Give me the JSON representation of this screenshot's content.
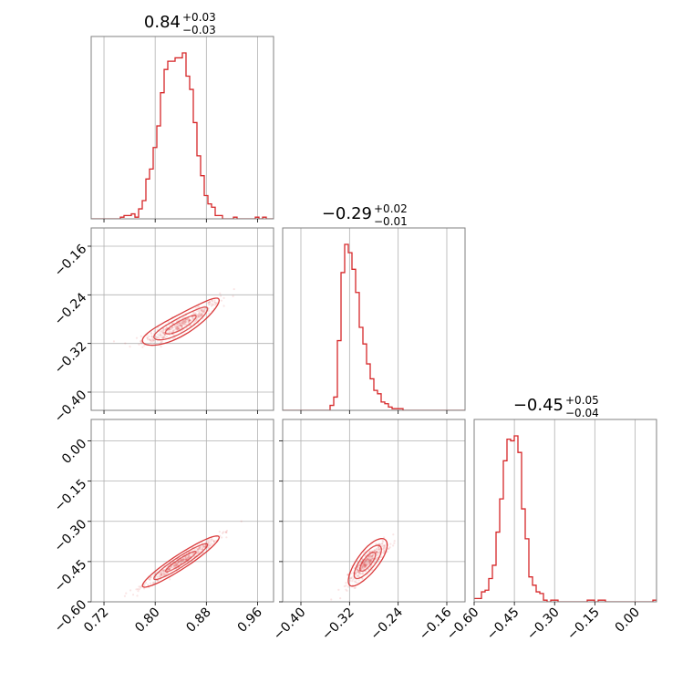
{
  "chart_data": {
    "type": "corner",
    "color": "#d62728",
    "grid": true,
    "parameters": [
      {
        "median_label": "0.84",
        "plus": "+0.03",
        "minus": "−0.03",
        "range": [
          0.7,
          0.985
        ],
        "ticks": [
          0.72,
          0.8,
          0.88,
          0.96
        ],
        "tick_labels": [
          "0.72",
          "0.80",
          "0.88",
          "0.96"
        ]
      },
      {
        "median_label": "−0.29",
        "plus": "+0.02",
        "minus": "−0.01",
        "range": [
          -0.43,
          -0.13
        ],
        "ticks": [
          -0.4,
          -0.32,
          -0.24,
          -0.16
        ],
        "tick_labels": [
          "−0.40",
          "−0.32",
          "−0.24",
          "−0.16"
        ]
      },
      {
        "median_label": "−0.45",
        "plus": "+0.05",
        "minus": "−0.04",
        "range": [
          -0.6,
          0.08
        ],
        "ticks": [
          -0.6,
          -0.45,
          -0.3,
          -0.15,
          0.0
        ],
        "tick_labels": [
          "−0.60",
          "−0.45",
          "−0.30",
          "−0.15",
          "0.00"
        ]
      }
    ],
    "histograms": [
      {
        "bin_start": 0.7,
        "bin_width": 0.0057,
        "counts": [
          0,
          0,
          0,
          0,
          0,
          0,
          0,
          0,
          0.01,
          0.02,
          0.02,
          0.03,
          0.01,
          0.06,
          0.11,
          0.24,
          0.3,
          0.43,
          0.56,
          0.76,
          0.9,
          0.95,
          0.95,
          0.97,
          0.97,
          1.0,
          0.86,
          0.78,
          0.58,
          0.38,
          0.26,
          0.14,
          0.09,
          0.07,
          0.02,
          0.02,
          0,
          0,
          0,
          0.01,
          0,
          0,
          0,
          0,
          0,
          0.01,
          0,
          0.01,
          0,
          0,
          0
        ]
      },
      {
        "bin_start": -0.43,
        "bin_width": 0.006,
        "counts": [
          0,
          0,
          0,
          0,
          0,
          0,
          0,
          0,
          0,
          0,
          0,
          0,
          0,
          0.03,
          0.08,
          0.42,
          0.83,
          1.0,
          0.95,
          0.85,
          0.71,
          0.5,
          0.4,
          0.28,
          0.19,
          0.12,
          0.1,
          0.05,
          0.04,
          0.02,
          0.01,
          0.01,
          0.01,
          0,
          0,
          0,
          0,
          0,
          0,
          0,
          0,
          0,
          0,
          0,
          0,
          0,
          0,
          0,
          0,
          0,
          0
        ]
      },
      {
        "bin_start": -0.6,
        "bin_width": 0.0136,
        "counts": [
          0.02,
          0.02,
          0.06,
          0.07,
          0.14,
          0.22,
          0.42,
          0.62,
          0.85,
          0.98,
          0.97,
          1.0,
          0.9,
          0.56,
          0.38,
          0.15,
          0.1,
          0.06,
          0.05,
          0.01,
          0,
          0.01,
          0.01,
          0,
          0,
          0,
          0,
          0,
          0,
          0,
          0,
          0.01,
          0.01,
          0,
          0.01,
          0.01,
          0,
          0,
          0,
          0,
          0,
          0,
          0,
          0,
          0,
          0,
          0,
          0,
          0,
          0.01
        ]
      }
    ],
    "correlations": [
      {
        "row": 1,
        "col": 0,
        "center": [
          0.84,
          -0.29
        ],
        "slope": 0.55,
        "sd_x": 0.03,
        "sd_perp": 0.006,
        "curvature": 2.2
      },
      {
        "row": 2,
        "col": 0,
        "center": [
          0.84,
          -0.45
        ],
        "slope": 1.5,
        "sd_x": 0.03,
        "sd_perp": 0.01,
        "curvature": 0
      },
      {
        "row": 2,
        "col": 1,
        "center": [
          -0.29,
          -0.45
        ],
        "slope": 2.1,
        "sd_x": 0.016,
        "sd_perp": 0.018,
        "curvature": -5
      }
    ]
  }
}
